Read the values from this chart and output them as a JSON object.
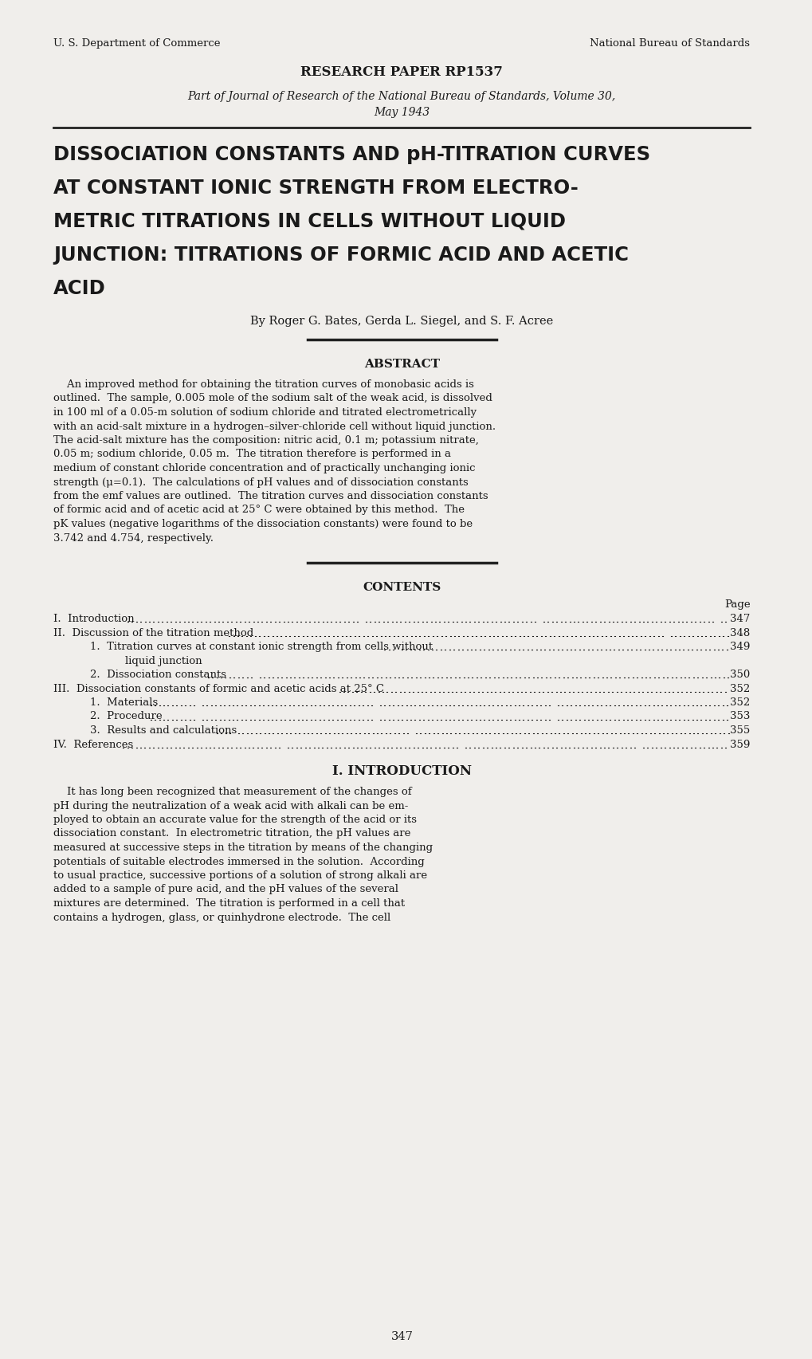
{
  "bg_color": "#f0eeeb",
  "text_color": "#1a1a1a",
  "header_left": "U. S. Department of Commerce",
  "header_right": "National Bureau of Standards",
  "research_paper": "RESEARCH PAPER RP1537",
  "journal_line1": "Part of Journal of Research of the National Bureau of Standards, Volume 30,",
  "journal_line2": "May 1943",
  "main_title_lines": [
    "DISSOCIATION CONSTANTS AND pH-TITRATION CURVES",
    "AT CONSTANT IONIC STRENGTH FROM ELECTRO-",
    "METRIC TITRATIONS IN CELLS WITHOUT LIQUID",
    "JUNCTION: TITRATIONS OF FORMIC ACID AND ACETIC",
    "ACID"
  ],
  "authors": "By Roger G. Bates, Gerda L. Siegel, and S. F. Acree",
  "abstract_title": "ABSTRACT",
  "abstract_lines": [
    "    An improved method for obtaining the titration curves of monobasic acids is",
    "outlined.  The sample, 0.005 mole of the sodium salt of the weak acid, is dissolved",
    "in 100 ml of a 0.05-m solution of sodium chloride and titrated electrometrically",
    "with an acid-salt mixture in a hydrogen–silver-chloride cell without liquid junction.",
    "The acid-salt mixture has the composition: nitric acid, 0.1 m; potassium nitrate,",
    "0.05 m; sodium chloride, 0.05 m.  The titration therefore is performed in a",
    "medium of constant chloride concentration and of practically unchanging ionic",
    "strength (μ=0.1).  The calculations of pH values and of dissociation constants",
    "from the emf values are outlined.  The titration curves and dissociation constants",
    "of formic acid and of acetic acid at 25° C were obtained by this method.  The",
    "pK values (negative logarithms of the dissociation constants) were found to be",
    "3.742 and 4.754, respectively."
  ],
  "contents_title": "CONTENTS",
  "contents_page_label": "Page",
  "contents_items": [
    {
      "label": "I.  Introduction",
      "page": "347",
      "indent": 0,
      "two_line": false
    },
    {
      "label": "II.  Discussion of the titration method",
      "page": "348",
      "indent": 0,
      "two_line": false
    },
    {
      "label": "1.  Titration curves at constant ionic strength from cells without",
      "label2": "        liquid junction",
      "page": "349",
      "indent": 1,
      "two_line": true
    },
    {
      "label": "2.  Dissociation constants",
      "page": "350",
      "indent": 1,
      "two_line": false
    },
    {
      "label": "III.  Dissociation constants of formic and acetic acids at 25° C",
      "page": "352",
      "indent": 0,
      "two_line": false
    },
    {
      "label": "1.  Materials",
      "page": "352",
      "indent": 1,
      "two_line": false
    },
    {
      "label": "2.  Procedure",
      "page": "353",
      "indent": 1,
      "two_line": false
    },
    {
      "label": "3.  Results and calculations",
      "page": "355",
      "indent": 1,
      "two_line": false
    },
    {
      "label": "IV.  References",
      "page": "359",
      "indent": 0,
      "two_line": false
    }
  ],
  "intro_title": "I. INTRODUCTION",
  "intro_lines": [
    "    It has long been recognized that measurement of the changes of",
    "pH during the neutralization of a weak acid with alkali can be em-",
    "ployed to obtain an accurate value for the strength of the acid or its",
    "dissociation constant.  In electrometric titration, the pH values are",
    "measured at successive steps in the titration by means of the changing",
    "potentials of suitable electrodes immersed in the solution.  According",
    "to usual practice, successive portions of a solution of strong alkali are",
    "added to a sample of pure acid, and the pH values of the several",
    "mixtures are determined.  The titration is performed in a cell that",
    "contains a hydrogen, glass, or quinhydrone electrode.  The cell"
  ],
  "page_number": "347"
}
